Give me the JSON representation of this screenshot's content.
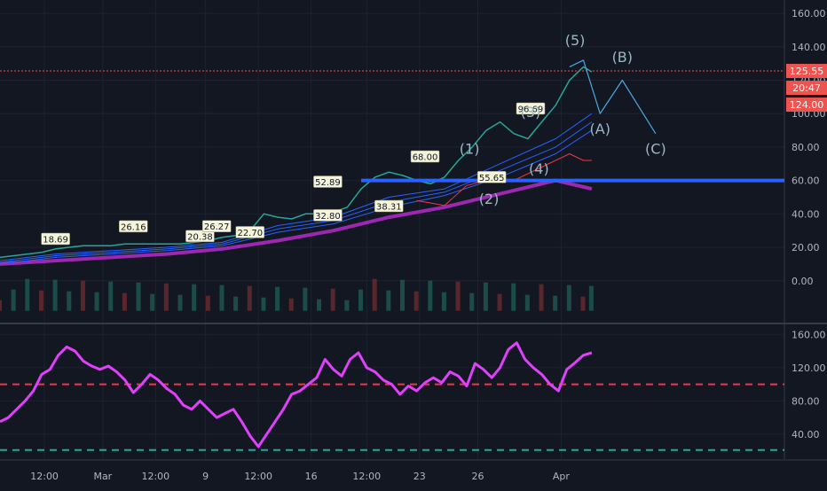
{
  "chart_data": {
    "type": "line",
    "panels": [
      {
        "name": "price",
        "ylim": [
          -24,
          168
        ],
        "yticks": [
          "160.00",
          "140.00",
          "120.00",
          "100.00",
          "80.00",
          "60.00",
          "40.00",
          "20.00",
          "0.00"
        ],
        "ytick_values": [
          160,
          140,
          120,
          100,
          80,
          60,
          40,
          20,
          0
        ],
        "price_line": [
          [
            0,
            14
          ],
          [
            5,
            15
          ],
          [
            10,
            16
          ],
          [
            15,
            17
          ],
          [
            20,
            19
          ],
          [
            25,
            20
          ],
          [
            30,
            21
          ],
          [
            35,
            21
          ],
          [
            40,
            21
          ],
          [
            45,
            22
          ],
          [
            50,
            22
          ],
          [
            55,
            22
          ],
          [
            60,
            22
          ],
          [
            65,
            22
          ],
          [
            70,
            23
          ],
          [
            75,
            24
          ],
          [
            80,
            26
          ],
          [
            85,
            27
          ],
          [
            90,
            30
          ],
          [
            95,
            40
          ],
          [
            100,
            38
          ],
          [
            105,
            37
          ],
          [
            110,
            40
          ],
          [
            115,
            40
          ],
          [
            120,
            41
          ],
          [
            125,
            44
          ],
          [
            130,
            55
          ],
          [
            135,
            62
          ],
          [
            140,
            65
          ],
          [
            145,
            63
          ],
          [
            150,
            60
          ],
          [
            155,
            58
          ],
          [
            160,
            62
          ],
          [
            165,
            72
          ],
          [
            170,
            80
          ],
          [
            175,
            90
          ],
          [
            180,
            95
          ],
          [
            185,
            88
          ],
          [
            190,
            85
          ],
          [
            195,
            95
          ],
          [
            200,
            105
          ],
          [
            205,
            120
          ],
          [
            210,
            128
          ],
          [
            213,
            125
          ]
        ],
        "ema_lines": [
          [
            [
              0,
              12
            ],
            [
              20,
              16
            ],
            [
              40,
              18
            ],
            [
              60,
              20
            ],
            [
              80,
              23
            ],
            [
              100,
              33
            ],
            [
              120,
              38
            ],
            [
              140,
              50
            ],
            [
              160,
              55
            ],
            [
              180,
              70
            ],
            [
              200,
              85
            ],
            [
              213,
              100
            ]
          ],
          [
            [
              0,
              11
            ],
            [
              20,
              15
            ],
            [
              40,
              17
            ],
            [
              60,
              19
            ],
            [
              80,
              22
            ],
            [
              100,
              31
            ],
            [
              120,
              36
            ],
            [
              140,
              47
            ],
            [
              160,
              53
            ],
            [
              180,
              66
            ],
            [
              200,
              80
            ],
            [
              213,
              95
            ]
          ],
          [
            [
              0,
              10
            ],
            [
              20,
              14
            ],
            [
              40,
              16
            ],
            [
              60,
              18
            ],
            [
              80,
              21
            ],
            [
              100,
              29
            ],
            [
              120,
              34
            ],
            [
              140,
              44
            ],
            [
              160,
              51
            ],
            [
              180,
              62
            ],
            [
              200,
              76
            ],
            [
              213,
              90
            ]
          ]
        ],
        "red_line": [
          [
            150,
            48
          ],
          [
            160,
            45
          ],
          [
            168,
            57
          ],
          [
            175,
            60
          ],
          [
            185,
            60
          ],
          [
            195,
            68
          ],
          [
            205,
            76
          ],
          [
            210,
            72
          ],
          [
            213,
            72
          ]
        ],
        "ma_purple": [
          [
            0,
            10
          ],
          [
            20,
            12
          ],
          [
            40,
            14
          ],
          [
            60,
            16
          ],
          [
            80,
            19
          ],
          [
            100,
            24
          ],
          [
            120,
            30
          ],
          [
            140,
            38
          ],
          [
            160,
            44
          ],
          [
            180,
            52
          ],
          [
            200,
            60
          ],
          [
            213,
            55
          ]
        ],
        "support_level": 60,
        "support_x": [
          130,
          340
        ],
        "current_price": 125.55,
        "price_tags": [
          "125.55",
          "20:47",
          "124.00"
        ],
        "price_tag_colors": [
          "#ef5350",
          "#ef5350",
          "#ef5350"
        ],
        "annotations": [
          {
            "text": "18.69",
            "x": 20,
            "y": 18.69
          },
          {
            "text": "26.16",
            "x": 48,
            "y": 26.16
          },
          {
            "text": "20.38",
            "x": 72,
            "y": 20.38
          },
          {
            "text": "26.27",
            "x": 78,
            "y": 26.27
          },
          {
            "text": "22.70",
            "x": 90,
            "y": 22.7
          },
          {
            "text": "52.89",
            "x": 118,
            "y": 52.89
          },
          {
            "text": "32.80",
            "x": 118,
            "y": 32.8
          },
          {
            "text": "38.31",
            "x": 140,
            "y": 38.31
          },
          {
            "text": "68.00",
            "x": 153,
            "y": 68.0
          },
          {
            "text": "55.65",
            "x": 177,
            "y": 55.65
          },
          {
            "text": "96.69",
            "x": 191,
            "y": 96.69
          }
        ],
        "wave_labels": [
          {
            "text": "(5)",
            "x": 207,
            "y": 141
          },
          {
            "text": "(B)",
            "x": 224,
            "y": 131
          },
          {
            "text": "(A)",
            "x": 216,
            "y": 88
          },
          {
            "text": "(C)",
            "x": 236,
            "y": 76
          },
          {
            "text": "(1)",
            "x": 169,
            "y": 76
          },
          {
            "text": "(2)",
            "x": 176,
            "y": 46
          },
          {
            "text": "(3)",
            "x": 191,
            "y": 98
          },
          {
            "text": "(4)",
            "x": 194,
            "y": 64
          }
        ],
        "projection": [
          [
            205,
            128
          ],
          [
            210,
            132
          ],
          [
            216,
            100
          ],
          [
            224,
            120
          ],
          [
            236,
            88
          ]
        ],
        "colors": {
          "price": "#26a69a",
          "ema": "#2962ff",
          "red": "#f23645",
          "ma": "#9c27b0",
          "support": "#2962ff",
          "wave": "#9bb8c6"
        }
      },
      {
        "name": "oscillator",
        "ylim": [
          10,
          170
        ],
        "yticks": [
          "160.00",
          "120.00",
          "80.00",
          "40.00"
        ],
        "ytick_values": [
          160,
          120,
          80,
          40
        ],
        "line": [
          [
            0,
            55
          ],
          [
            3,
            60
          ],
          [
            6,
            70
          ],
          [
            9,
            80
          ],
          [
            12,
            92
          ],
          [
            15,
            112
          ],
          [
            18,
            118
          ],
          [
            21,
            135
          ],
          [
            24,
            145
          ],
          [
            27,
            140
          ],
          [
            30,
            128
          ],
          [
            33,
            122
          ],
          [
            36,
            118
          ],
          [
            39,
            122
          ],
          [
            42,
            115
          ],
          [
            45,
            105
          ],
          [
            48,
            90
          ],
          [
            51,
            100
          ],
          [
            54,
            112
          ],
          [
            57,
            105
          ],
          [
            60,
            95
          ],
          [
            63,
            88
          ],
          [
            66,
            75
          ],
          [
            69,
            70
          ],
          [
            72,
            80
          ],
          [
            75,
            70
          ],
          [
            78,
            60
          ],
          [
            81,
            65
          ],
          [
            84,
            70
          ],
          [
            87,
            55
          ],
          [
            90,
            38
          ],
          [
            93,
            25
          ],
          [
            96,
            40
          ],
          [
            99,
            55
          ],
          [
            102,
            70
          ],
          [
            105,
            88
          ],
          [
            108,
            92
          ],
          [
            111,
            100
          ],
          [
            114,
            108
          ],
          [
            117,
            130
          ],
          [
            120,
            118
          ],
          [
            123,
            110
          ],
          [
            126,
            130
          ],
          [
            129,
            138
          ],
          [
            132,
            120
          ],
          [
            135,
            115
          ],
          [
            138,
            105
          ],
          [
            141,
            100
          ],
          [
            144,
            88
          ],
          [
            147,
            98
          ],
          [
            150,
            92
          ],
          [
            153,
            102
          ],
          [
            156,
            108
          ],
          [
            159,
            102
          ],
          [
            162,
            115
          ],
          [
            165,
            110
          ],
          [
            168,
            98
          ],
          [
            171,
            125
          ],
          [
            174,
            118
          ],
          [
            177,
            108
          ],
          [
            180,
            120
          ],
          [
            183,
            142
          ],
          [
            186,
            150
          ],
          [
            189,
            130
          ],
          [
            192,
            120
          ],
          [
            195,
            112
          ],
          [
            198,
            100
          ],
          [
            201,
            92
          ],
          [
            204,
            118
          ],
          [
            207,
            126
          ],
          [
            210,
            135
          ],
          [
            213,
            138
          ]
        ],
        "upper_level": 100,
        "lower_level": 21,
        "colors": {
          "line": "#e040fb",
          "upper": "#f23645",
          "lower": "#26a69a"
        }
      }
    ],
    "x_axis": {
      "labels": [
        "12:00",
        "Mar",
        "12:00",
        "9",
        "12:00",
        "16",
        "12:00",
        "23",
        "26",
        "Apr"
      ],
      "positions": [
        16,
        37,
        56,
        74,
        93,
        112,
        132,
        151,
        172,
        202
      ],
      "xlim": [
        0,
        240
      ]
    }
  }
}
